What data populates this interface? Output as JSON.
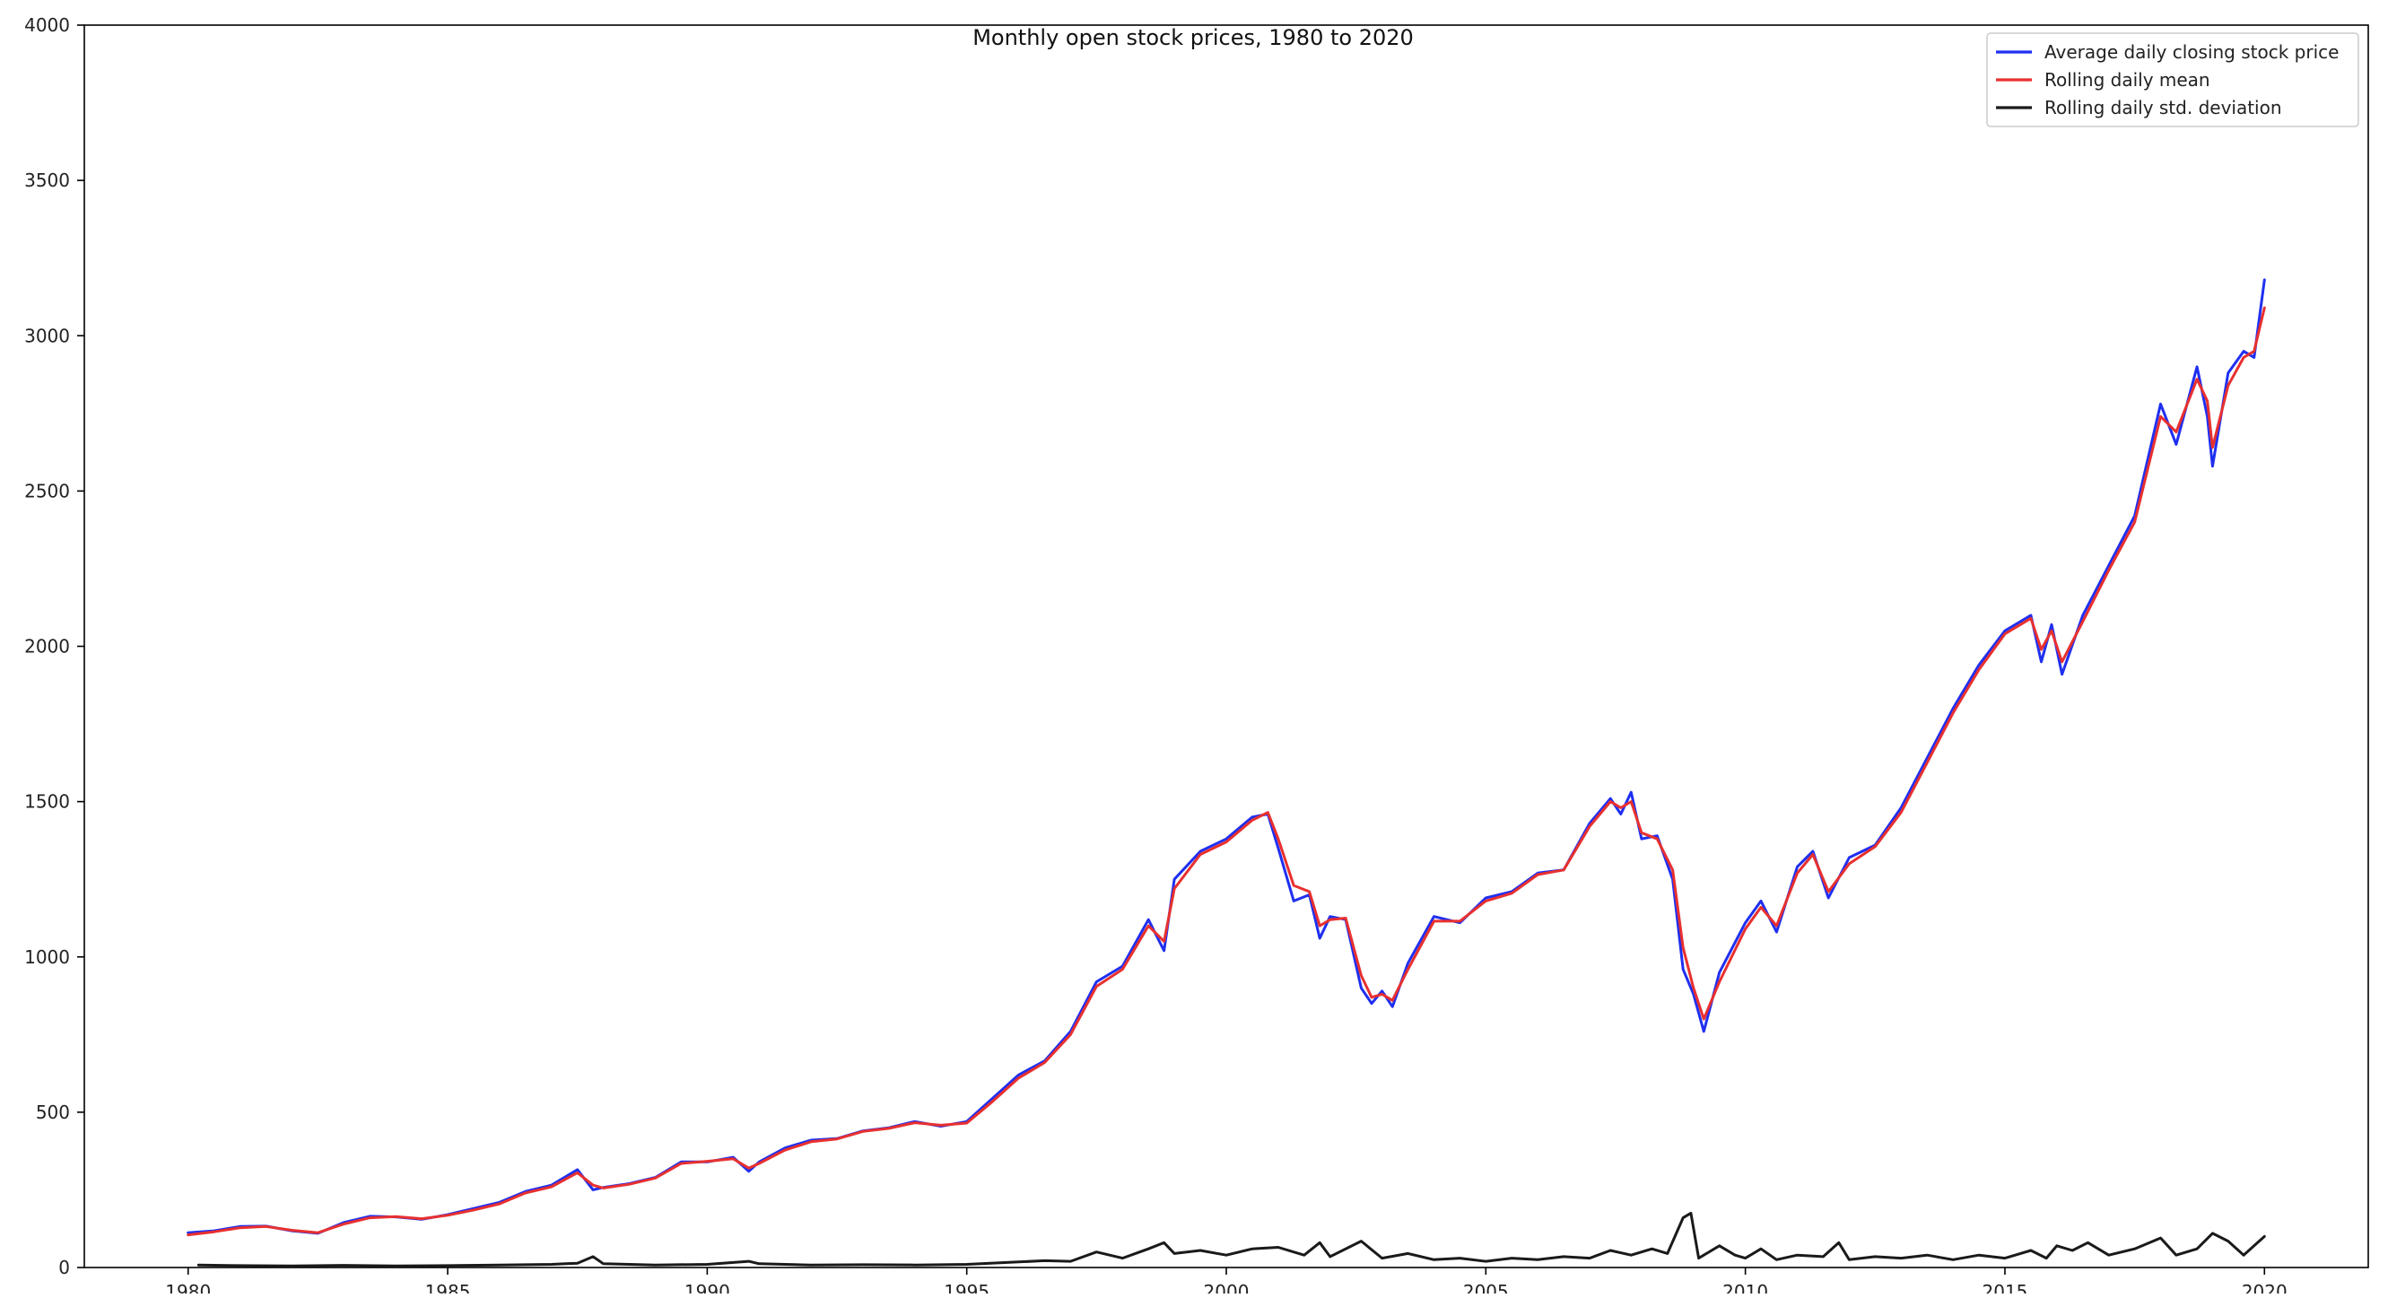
{
  "chart_data": {
    "type": "line",
    "title": "Monthly open stock prices, 1980 to 2020",
    "xlabel": "",
    "ylabel": "",
    "xlim": [
      1978.0,
      2022.0
    ],
    "ylim": [
      0,
      4000
    ],
    "xticks": [
      "1980",
      "1985",
      "1990",
      "1995",
      "2000",
      "2005",
      "2010",
      "2015",
      "2020"
    ],
    "yticks": [
      "0",
      "500",
      "1000",
      "1500",
      "2000",
      "2500",
      "3000",
      "3500",
      "4000"
    ],
    "grid": false,
    "legend_position": "top-right",
    "series": [
      {
        "name": "Average daily closing stock price",
        "color": "#1f2ff0",
        "points": [
          [
            1980.0,
            112
          ],
          [
            1980.5,
            118
          ],
          [
            1981.0,
            132
          ],
          [
            1981.5,
            133
          ],
          [
            1982.0,
            118
          ],
          [
            1982.5,
            110
          ],
          [
            1983.0,
            145
          ],
          [
            1983.5,
            165
          ],
          [
            1984.0,
            163
          ],
          [
            1984.5,
            155
          ],
          [
            1985.0,
            170
          ],
          [
            1985.5,
            190
          ],
          [
            1986.0,
            210
          ],
          [
            1986.5,
            245
          ],
          [
            1987.0,
            265
          ],
          [
            1987.5,
            315
          ],
          [
            1987.8,
            250
          ],
          [
            1988.0,
            258
          ],
          [
            1988.5,
            270
          ],
          [
            1989.0,
            290
          ],
          [
            1989.5,
            340
          ],
          [
            1990.0,
            340
          ],
          [
            1990.5,
            355
          ],
          [
            1990.8,
            310
          ],
          [
            1991.0,
            340
          ],
          [
            1991.5,
            385
          ],
          [
            1992.0,
            410
          ],
          [
            1992.5,
            415
          ],
          [
            1993.0,
            440
          ],
          [
            1993.5,
            450
          ],
          [
            1994.0,
            470
          ],
          [
            1994.5,
            455
          ],
          [
            1995.0,
            470
          ],
          [
            1995.5,
            545
          ],
          [
            1996.0,
            620
          ],
          [
            1996.5,
            665
          ],
          [
            1997.0,
            760
          ],
          [
            1997.5,
            920
          ],
          [
            1998.0,
            970
          ],
          [
            1998.5,
            1120
          ],
          [
            1998.8,
            1020
          ],
          [
            1999.0,
            1250
          ],
          [
            1999.5,
            1340
          ],
          [
            2000.0,
            1380
          ],
          [
            2000.5,
            1450
          ],
          [
            2000.8,
            1460
          ],
          [
            2001.0,
            1350
          ],
          [
            2001.3,
            1180
          ],
          [
            2001.6,
            1200
          ],
          [
            2001.8,
            1060
          ],
          [
            2002.0,
            1130
          ],
          [
            2002.3,
            1120
          ],
          [
            2002.6,
            900
          ],
          [
            2002.8,
            850
          ],
          [
            2003.0,
            890
          ],
          [
            2003.2,
            840
          ],
          [
            2003.5,
            980
          ],
          [
            2004.0,
            1130
          ],
          [
            2004.5,
            1110
          ],
          [
            2005.0,
            1190
          ],
          [
            2005.5,
            1210
          ],
          [
            2006.0,
            1270
          ],
          [
            2006.5,
            1280
          ],
          [
            2007.0,
            1430
          ],
          [
            2007.4,
            1510
          ],
          [
            2007.6,
            1460
          ],
          [
            2007.8,
            1530
          ],
          [
            2008.0,
            1380
          ],
          [
            2008.3,
            1390
          ],
          [
            2008.6,
            1250
          ],
          [
            2008.8,
            960
          ],
          [
            2009.0,
            880
          ],
          [
            2009.2,
            760
          ],
          [
            2009.5,
            950
          ],
          [
            2010.0,
            1110
          ],
          [
            2010.3,
            1180
          ],
          [
            2010.6,
            1080
          ],
          [
            2011.0,
            1290
          ],
          [
            2011.3,
            1340
          ],
          [
            2011.6,
            1190
          ],
          [
            2012.0,
            1320
          ],
          [
            2012.5,
            1360
          ],
          [
            2013.0,
            1480
          ],
          [
            2013.5,
            1640
          ],
          [
            2014.0,
            1800
          ],
          [
            2014.5,
            1940
          ],
          [
            2015.0,
            2050
          ],
          [
            2015.5,
            2100
          ],
          [
            2015.7,
            1950
          ],
          [
            2015.9,
            2070
          ],
          [
            2016.1,
            1910
          ],
          [
            2016.5,
            2100
          ],
          [
            2017.0,
            2260
          ],
          [
            2017.5,
            2420
          ],
          [
            2018.0,
            2780
          ],
          [
            2018.3,
            2650
          ],
          [
            2018.7,
            2900
          ],
          [
            2018.9,
            2740
          ],
          [
            2019.0,
            2580
          ],
          [
            2019.3,
            2880
          ],
          [
            2019.6,
            2950
          ],
          [
            2019.8,
            2930
          ],
          [
            2020.0,
            3180
          ]
        ]
      },
      {
        "name": "Rolling daily mean",
        "color": "#e8302f",
        "points": [
          [
            1980.0,
            105
          ],
          [
            1980.5,
            115
          ],
          [
            1981.0,
            128
          ],
          [
            1981.5,
            132
          ],
          [
            1982.0,
            120
          ],
          [
            1982.5,
            112
          ],
          [
            1983.0,
            140
          ],
          [
            1983.5,
            160
          ],
          [
            1984.0,
            164
          ],
          [
            1984.5,
            157
          ],
          [
            1985.0,
            168
          ],
          [
            1985.5,
            185
          ],
          [
            1986.0,
            205
          ],
          [
            1986.5,
            240
          ],
          [
            1987.0,
            260
          ],
          [
            1987.5,
            305
          ],
          [
            1987.8,
            265
          ],
          [
            1988.0,
            256
          ],
          [
            1988.5,
            268
          ],
          [
            1989.0,
            288
          ],
          [
            1989.5,
            335
          ],
          [
            1990.0,
            342
          ],
          [
            1990.5,
            350
          ],
          [
            1990.8,
            320
          ],
          [
            1991.0,
            335
          ],
          [
            1991.5,
            378
          ],
          [
            1992.0,
            405
          ],
          [
            1992.5,
            414
          ],
          [
            1993.0,
            438
          ],
          [
            1993.5,
            448
          ],
          [
            1994.0,
            466
          ],
          [
            1994.5,
            458
          ],
          [
            1995.0,
            465
          ],
          [
            1995.5,
            535
          ],
          [
            1996.0,
            610
          ],
          [
            1996.5,
            660
          ],
          [
            1997.0,
            750
          ],
          [
            1997.5,
            905
          ],
          [
            1998.0,
            960
          ],
          [
            1998.5,
            1100
          ],
          [
            1998.8,
            1050
          ],
          [
            1999.0,
            1220
          ],
          [
            1999.5,
            1330
          ],
          [
            2000.0,
            1370
          ],
          [
            2000.5,
            1440
          ],
          [
            2000.8,
            1465
          ],
          [
            2001.0,
            1380
          ],
          [
            2001.3,
            1230
          ],
          [
            2001.6,
            1210
          ],
          [
            2001.8,
            1100
          ],
          [
            2002.0,
            1120
          ],
          [
            2002.3,
            1125
          ],
          [
            2002.6,
            940
          ],
          [
            2002.8,
            870
          ],
          [
            2003.0,
            880
          ],
          [
            2003.2,
            860
          ],
          [
            2003.5,
            960
          ],
          [
            2004.0,
            1115
          ],
          [
            2004.5,
            1115
          ],
          [
            2005.0,
            1180
          ],
          [
            2005.5,
            1205
          ],
          [
            2006.0,
            1265
          ],
          [
            2006.5,
            1280
          ],
          [
            2007.0,
            1420
          ],
          [
            2007.4,
            1500
          ],
          [
            2007.6,
            1480
          ],
          [
            2007.8,
            1500
          ],
          [
            2008.0,
            1400
          ],
          [
            2008.3,
            1380
          ],
          [
            2008.6,
            1280
          ],
          [
            2008.8,
            1030
          ],
          [
            2009.0,
            900
          ],
          [
            2009.2,
            800
          ],
          [
            2009.5,
            920
          ],
          [
            2010.0,
            1090
          ],
          [
            2010.3,
            1160
          ],
          [
            2010.6,
            1100
          ],
          [
            2011.0,
            1270
          ],
          [
            2011.3,
            1330
          ],
          [
            2011.6,
            1210
          ],
          [
            2012.0,
            1300
          ],
          [
            2012.5,
            1355
          ],
          [
            2013.0,
            1465
          ],
          [
            2013.5,
            1625
          ],
          [
            2014.0,
            1785
          ],
          [
            2014.5,
            1925
          ],
          [
            2015.0,
            2040
          ],
          [
            2015.5,
            2090
          ],
          [
            2015.7,
            1990
          ],
          [
            2015.9,
            2050
          ],
          [
            2016.1,
            1950
          ],
          [
            2016.5,
            2080
          ],
          [
            2017.0,
            2245
          ],
          [
            2017.5,
            2400
          ],
          [
            2018.0,
            2740
          ],
          [
            2018.3,
            2690
          ],
          [
            2018.7,
            2860
          ],
          [
            2018.9,
            2790
          ],
          [
            2019.0,
            2640
          ],
          [
            2019.3,
            2840
          ],
          [
            2019.6,
            2930
          ],
          [
            2019.8,
            2950
          ],
          [
            2020.0,
            3090
          ]
        ]
      },
      {
        "name": "Rolling daily std. deviation",
        "color": "#1a1a1a",
        "points": [
          [
            1980.2,
            8
          ],
          [
            1981.0,
            6
          ],
          [
            1982.0,
            5
          ],
          [
            1983.0,
            7
          ],
          [
            1984.0,
            5
          ],
          [
            1985.0,
            6
          ],
          [
            1986.0,
            8
          ],
          [
            1987.0,
            10
          ],
          [
            1987.5,
            14
          ],
          [
            1987.8,
            35
          ],
          [
            1988.0,
            12
          ],
          [
            1989.0,
            8
          ],
          [
            1990.0,
            10
          ],
          [
            1990.8,
            20
          ],
          [
            1991.0,
            12
          ],
          [
            1992.0,
            8
          ],
          [
            1993.0,
            9
          ],
          [
            1994.0,
            8
          ],
          [
            1995.0,
            10
          ],
          [
            1996.0,
            18
          ],
          [
            1996.5,
            22
          ],
          [
            1997.0,
            20
          ],
          [
            1997.5,
            50
          ],
          [
            1998.0,
            30
          ],
          [
            1998.5,
            60
          ],
          [
            1998.8,
            80
          ],
          [
            1999.0,
            45
          ],
          [
            1999.5,
            55
          ],
          [
            2000.0,
            40
          ],
          [
            2000.5,
            60
          ],
          [
            2001.0,
            65
          ],
          [
            2001.5,
            40
          ],
          [
            2001.8,
            80
          ],
          [
            2002.0,
            35
          ],
          [
            2002.6,
            85
          ],
          [
            2003.0,
            30
          ],
          [
            2003.5,
            45
          ],
          [
            2004.0,
            25
          ],
          [
            2004.5,
            30
          ],
          [
            2005.0,
            20
          ],
          [
            2005.5,
            30
          ],
          [
            2006.0,
            25
          ],
          [
            2006.5,
            35
          ],
          [
            2007.0,
            30
          ],
          [
            2007.4,
            55
          ],
          [
            2007.8,
            40
          ],
          [
            2008.2,
            60
          ],
          [
            2008.5,
            45
          ],
          [
            2008.8,
            160
          ],
          [
            2008.95,
            175
          ],
          [
            2009.1,
            30
          ],
          [
            2009.5,
            70
          ],
          [
            2009.8,
            40
          ],
          [
            2010.0,
            30
          ],
          [
            2010.3,
            60
          ],
          [
            2010.6,
            25
          ],
          [
            2011.0,
            40
          ],
          [
            2011.5,
            35
          ],
          [
            2011.8,
            80
          ],
          [
            2012.0,
            25
          ],
          [
            2012.5,
            35
          ],
          [
            2013.0,
            30
          ],
          [
            2013.5,
            40
          ],
          [
            2014.0,
            25
          ],
          [
            2014.5,
            40
          ],
          [
            2015.0,
            30
          ],
          [
            2015.5,
            55
          ],
          [
            2015.8,
            30
          ],
          [
            2016.0,
            70
          ],
          [
            2016.3,
            55
          ],
          [
            2016.6,
            80
          ],
          [
            2017.0,
            40
          ],
          [
            2017.5,
            60
          ],
          [
            2018.0,
            95
          ],
          [
            2018.3,
            40
          ],
          [
            2018.7,
            60
          ],
          [
            2019.0,
            110
          ],
          [
            2019.3,
            85
          ],
          [
            2019.6,
            40
          ],
          [
            2019.8,
            70
          ],
          [
            2020.0,
            100
          ]
        ]
      }
    ]
  }
}
